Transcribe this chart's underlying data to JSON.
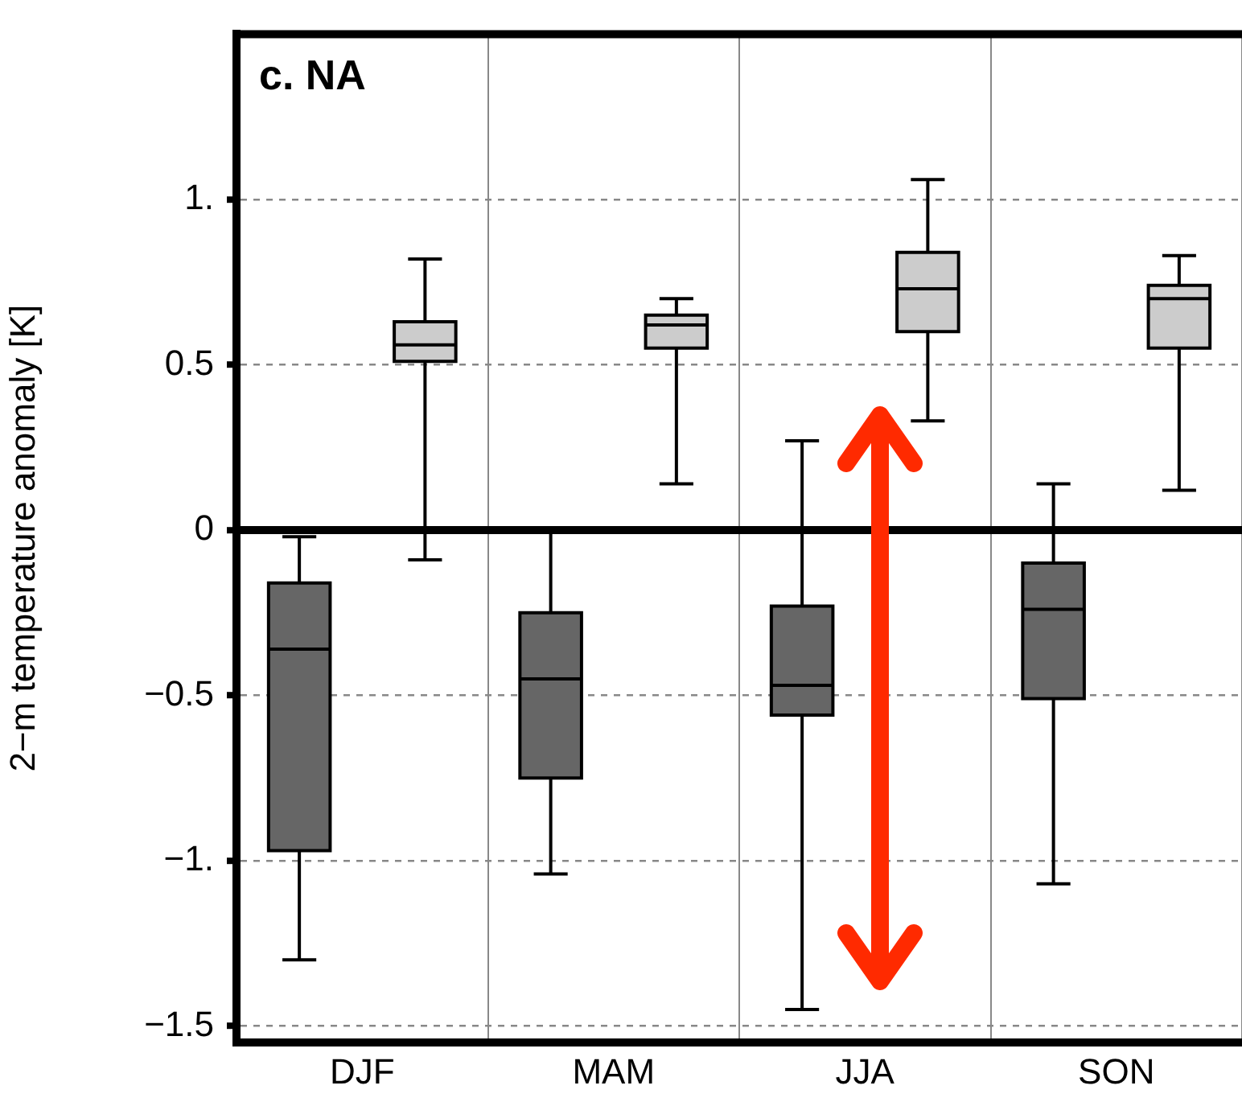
{
  "chart_data": {
    "type": "box",
    "title": "c. NA",
    "ylabel": "2−m temperature anomaly [K]",
    "categories": [
      "DJF",
      "MAM",
      "JJA",
      "SON"
    ],
    "series": [
      {
        "color": "#666666",
        "boxes": [
          {
            "low": -1.3,
            "q1": -0.97,
            "median": -0.36,
            "q3": -0.16,
            "high": -0.02
          },
          {
            "low": -1.04,
            "q1": -0.75,
            "median": -0.45,
            "q3": -0.25,
            "high": 0
          },
          {
            "low": -1.45,
            "q1": -0.56,
            "median": -0.47,
            "q3": -0.23,
            "high": 0.27
          },
          {
            "low": -1.07,
            "q1": -0.51,
            "median": -0.24,
            "q3": -0.1,
            "high": 0.14
          }
        ]
      },
      {
        "color": "#cccccc",
        "boxes": [
          {
            "low": -0.09,
            "q1": 0.51,
            "median": 0.56,
            "q3": 0.63,
            "high": 0.82
          },
          {
            "low": 0.14,
            "q1": 0.55,
            "median": 0.62,
            "q3": 0.65,
            "high": 0.7
          },
          {
            "low": 0.33,
            "q1": 0.6,
            "median": 0.73,
            "q3": 0.84,
            "high": 1.06
          },
          {
            "low": 0.12,
            "q1": 0.55,
            "median": 0.7,
            "q3": 0.74,
            "high": 0.83
          }
        ]
      }
    ],
    "ylim": [
      -1.55,
      1.5
    ],
    "yticks": [
      {
        "value": -1.5,
        "label": "−1.5"
      },
      {
        "value": -1,
        "label": "−1."
      },
      {
        "value": -0.5,
        "label": "−0.5"
      },
      0,
      0.5,
      {
        "value": 1,
        "label": "1."
      }
    ],
    "ref_lines": [
      {
        "axis": "y",
        "value": 0,
        "color": "#000000"
      }
    ],
    "grid": true,
    "legend": false
  }
}
